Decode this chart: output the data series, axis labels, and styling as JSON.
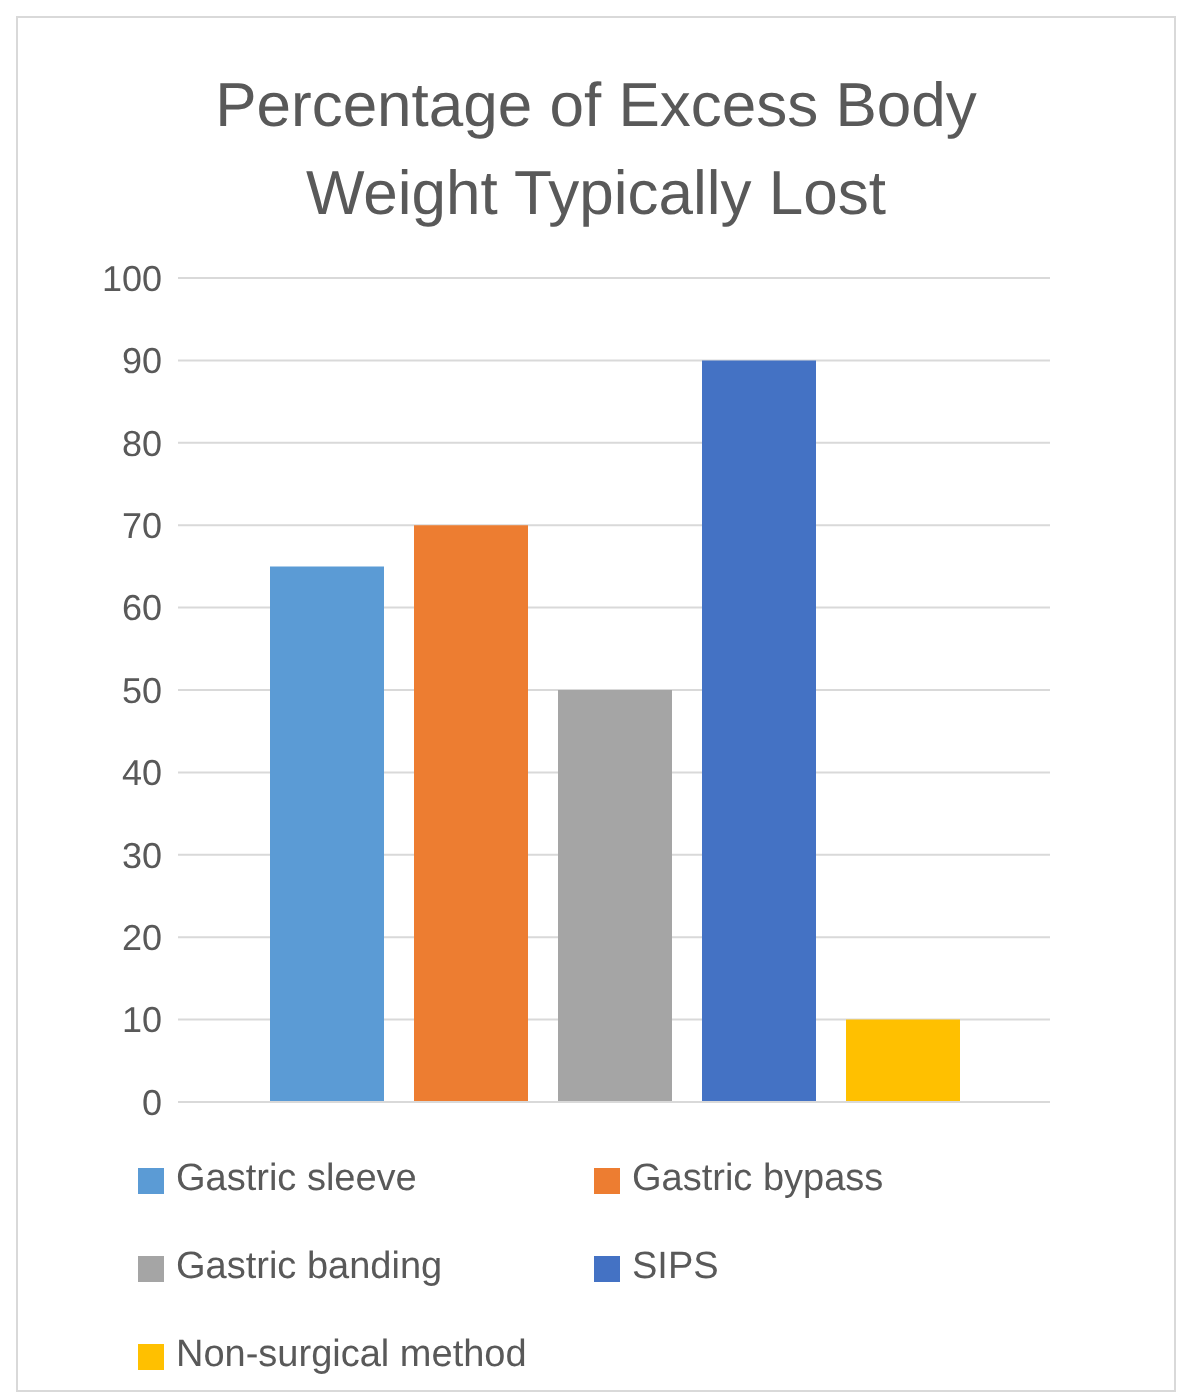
{
  "chart_data": {
    "type": "bar",
    "title": "Percentage of Excess Body Weight Typically Lost",
    "categories": [
      null
    ],
    "series": [
      {
        "name": "Gastric sleeve",
        "color": "#5b9bd5",
        "values": [
          65
        ]
      },
      {
        "name": "Gastric bypass",
        "color": "#ed7d31",
        "values": [
          70
        ]
      },
      {
        "name": "Gastric banding",
        "color": "#a5a5a5",
        "values": [
          50
        ]
      },
      {
        "name": "SIPS",
        "color": "#4472c4",
        "values": [
          90
        ]
      },
      {
        "name": "Non-surgical method",
        "color": "#ffc000",
        "values": [
          10
        ]
      }
    ],
    "ylim": [
      0,
      100
    ],
    "yticks": [
      0,
      10,
      20,
      30,
      40,
      50,
      60,
      70,
      80,
      90,
      100
    ],
    "grid": "y",
    "legend": "bottom"
  }
}
